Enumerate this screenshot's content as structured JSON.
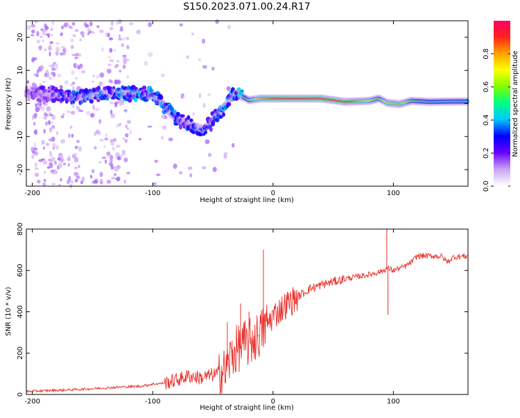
{
  "figure": {
    "title": "S150.2023.071.00.24.R17"
  },
  "chart_data": [
    {
      "type": "heatmap",
      "name": "spectrogram",
      "xlabel": "Height of straight line (km)",
      "ylabel": "Frequency (Hz)",
      "xlim": [
        -205,
        162
      ],
      "ylim": [
        -25,
        25
      ],
      "xticks": [
        -200,
        -100,
        0,
        100
      ],
      "yticks": [
        -20,
        -10,
        0,
        10,
        20
      ],
      "colorbar": {
        "label": "Normalized spectral amplitude",
        "range": [
          0,
          1
        ],
        "ticks": [
          "0.0",
          "0.2",
          "0.4",
          "0.6",
          "0.8"
        ],
        "colors": [
          "#ffffff",
          "#c9a0f5",
          "#6a00ff",
          "#0000ff",
          "#00c8ff",
          "#00ff80",
          "#80ff00",
          "#ffff00",
          "#ffa000",
          "#ff2020",
          "#ff0066"
        ]
      },
      "ridge": {
        "x": [
          -200,
          -185,
          -170,
          -155,
          -140,
          -125,
          -110,
          -100,
          -92,
          -85,
          -78,
          -72,
          -65,
          -58,
          -52,
          -46,
          -40,
          -35,
          -30,
          -25,
          -20,
          -10,
          0,
          20,
          40,
          60,
          80,
          88,
          95,
          105,
          115,
          130,
          150,
          162
        ],
        "y": [
          3,
          3,
          2,
          2,
          3,
          3,
          3,
          2.5,
          0,
          -3,
          -5,
          -6,
          -7,
          -8,
          -6,
          -3,
          -1,
          2,
          3,
          2,
          1,
          1.5,
          1.5,
          1.5,
          1.5,
          0.5,
          0.8,
          1.5,
          0.2,
          -0.2,
          0.8,
          0.5,
          0.6,
          0.6
        ],
        "amplitude": [
          0.15,
          0.2,
          0.3,
          0.35,
          0.3,
          0.35,
          0.35,
          0.35,
          0.35,
          0.35,
          0.3,
          0.3,
          0.3,
          0.3,
          0.3,
          0.3,
          0.4,
          0.4,
          0.35,
          0.5,
          0.6,
          0.8,
          0.9,
          0.95,
          0.9,
          0.95,
          0.7,
          0.6,
          0.75,
          0.8,
          0.6,
          0.5,
          0.5,
          0.5
        ]
      }
    },
    {
      "type": "line",
      "name": "snr",
      "xlabel": "Height of straight line (km)",
      "ylabel": "SNR (10 * v/v)",
      "xlim": [
        -205,
        162
      ],
      "ylim": [
        0,
        800
      ],
      "xticks": [
        -200,
        -100,
        0,
        100
      ],
      "yticks": [
        0,
        200,
        400,
        600,
        800
      ],
      "color": "#e8302a",
      "series": [
        {
          "name": "SNR",
          "x": [
            -205,
            -190,
            -170,
            -150,
            -130,
            -110,
            -100,
            -90,
            -80,
            -70,
            -60,
            -50,
            -40,
            -35,
            -30,
            -25,
            -20,
            -15,
            -10,
            -5,
            0,
            10,
            20,
            30,
            40,
            50,
            60,
            70,
            80,
            90,
            95,
            100,
            110,
            115,
            120,
            130,
            140,
            145,
            150,
            162
          ],
          "y": [
            15,
            18,
            22,
            28,
            35,
            40,
            50,
            55,
            70,
            90,
            80,
            95,
            110,
            180,
            220,
            240,
            250,
            270,
            300,
            340,
            380,
            430,
            470,
            510,
            530,
            545,
            560,
            570,
            580,
            595,
            610,
            600,
            620,
            640,
            670,
            670,
            668,
            640,
            665,
            670
          ]
        }
      ],
      "spikes": {
        "x": [
          -38,
          -34,
          -27,
          -24,
          -20,
          -17,
          -12,
          -8,
          94.5,
          95.5
        ],
        "y": [
          350,
          260,
          440,
          330,
          400,
          310,
          280,
          700,
          800,
          385
        ]
      }
    }
  ]
}
